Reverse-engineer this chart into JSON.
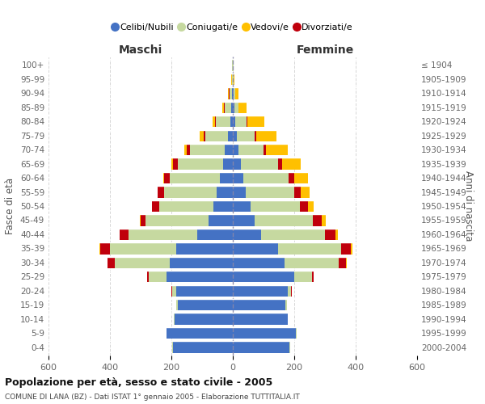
{
  "age_groups": [
    "0-4",
    "5-9",
    "10-14",
    "15-19",
    "20-24",
    "25-29",
    "30-34",
    "35-39",
    "40-44",
    "45-49",
    "50-54",
    "55-59",
    "60-64",
    "65-69",
    "70-74",
    "75-79",
    "80-84",
    "85-89",
    "90-94",
    "95-99",
    "100+"
  ],
  "birth_years": [
    "2000-2004",
    "1995-1999",
    "1990-1994",
    "1985-1989",
    "1980-1984",
    "1975-1979",
    "1970-1974",
    "1965-1969",
    "1960-1964",
    "1955-1959",
    "1950-1954",
    "1945-1949",
    "1940-1944",
    "1935-1939",
    "1930-1934",
    "1925-1929",
    "1920-1924",
    "1915-1919",
    "1910-1914",
    "1905-1909",
    "≤ 1904"
  ],
  "maschi": {
    "celibi": [
      195,
      215,
      190,
      180,
      185,
      215,
      205,
      185,
      115,
      78,
      62,
      52,
      42,
      32,
      27,
      17,
      8,
      5,
      2,
      1,
      1
    ],
    "coniugati": [
      2,
      2,
      2,
      3,
      12,
      60,
      180,
      215,
      225,
      205,
      178,
      172,
      163,
      148,
      112,
      72,
      47,
      22,
      9,
      2,
      1
    ],
    "vedovi": [
      0,
      0,
      0,
      0,
      0,
      0,
      1,
      1,
      1,
      1,
      2,
      2,
      3,
      5,
      10,
      12,
      10,
      5,
      3,
      1,
      0
    ],
    "divorziati": [
      0,
      0,
      0,
      1,
      2,
      5,
      22,
      32,
      28,
      18,
      22,
      20,
      18,
      15,
      10,
      7,
      2,
      1,
      1,
      0,
      0
    ]
  },
  "femmine": {
    "nubili": [
      185,
      205,
      178,
      172,
      178,
      200,
      168,
      148,
      92,
      72,
      57,
      42,
      33,
      26,
      19,
      13,
      8,
      5,
      2,
      1,
      1
    ],
    "coniugate": [
      2,
      2,
      2,
      3,
      12,
      58,
      178,
      205,
      208,
      188,
      162,
      157,
      148,
      122,
      82,
      58,
      37,
      13,
      5,
      1,
      1
    ],
    "vedove": [
      0,
      0,
      0,
      0,
      0,
      1,
      3,
      5,
      8,
      12,
      18,
      30,
      45,
      60,
      70,
      65,
      55,
      25,
      10,
      2,
      1
    ],
    "divorziate": [
      0,
      0,
      0,
      1,
      2,
      5,
      22,
      32,
      35,
      30,
      25,
      22,
      18,
      12,
      8,
      5,
      2,
      1,
      1,
      0,
      0
    ]
  },
  "colors": {
    "celibi": "#4472c4",
    "coniugati": "#c6d9a0",
    "vedovi": "#ffc000",
    "divorziati": "#c0000c"
  },
  "legend_labels": [
    "Celibi/Nubili",
    "Coniugati/e",
    "Vedovi/e",
    "Divorziati/e"
  ],
  "title": "Popolazione per età, sesso e stato civile - 2005",
  "subtitle": "COMUNE DI LANA (BZ) - Dati ISTAT 1° gennaio 2005 - Elaborazione TUTTITALIA.IT",
  "xlabel_maschi": "Maschi",
  "xlabel_femmine": "Femmine",
  "ylabel_left": "Fasce di età",
  "ylabel_right": "Anni di nascita",
  "xlim": 600,
  "bg_color": "#ffffff",
  "grid_color": "#cccccc"
}
